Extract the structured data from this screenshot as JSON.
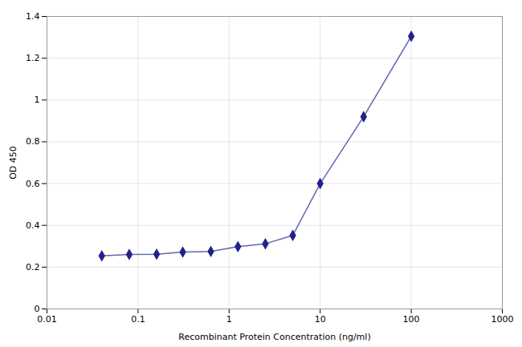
{
  "chart_data": {
    "type": "line",
    "x": [
      0.04,
      0.08,
      0.16,
      0.31,
      0.63,
      1.25,
      2.5,
      5.0,
      10.0,
      30.0,
      100.0
    ],
    "values": [
      0.254,
      0.261,
      0.262,
      0.272,
      0.275,
      0.298,
      0.312,
      0.352,
      0.6,
      0.92,
      1.305
    ],
    "color": "#22228a",
    "marker": "diamond",
    "xlabel": "Recombinant Protein Concentration (ng/ml)",
    "ylabel": "OD 450",
    "log": "x",
    "xlim": [
      0.01,
      1000
    ],
    "xticks": [
      0.01,
      0.1,
      1,
      10,
      100,
      1000
    ],
    "ylim": [
      0,
      1.4
    ],
    "yticks": [
      0,
      0.2,
      0.4,
      0.6,
      0.8,
      1,
      1.2,
      1.4
    ],
    "grid": true
  }
}
